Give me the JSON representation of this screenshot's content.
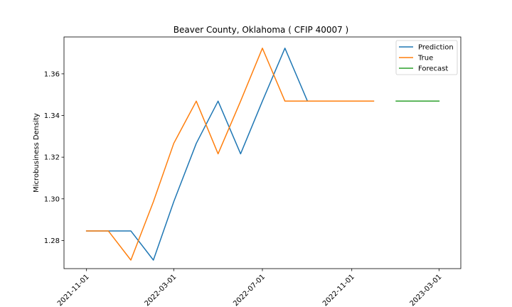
{
  "chart_data": {
    "type": "line",
    "title": "Beaver County, Oklahoma ( CFIP 40007 )",
    "xlabel": "",
    "ylabel": "Microbusiness Density",
    "x_axis_type": "date",
    "xlim": [
      "2021-10-01",
      "2023-03-31"
    ],
    "ylim": [
      1.2665,
      1.3777
    ],
    "x_ticks": [
      "2021-11-01",
      "2022-03-01",
      "2022-07-01",
      "2022-11-01",
      "2023-03-01"
    ],
    "y_ticks": [
      1.28,
      1.3,
      1.32,
      1.34,
      1.36
    ],
    "y_tick_labels": [
      "1.28",
      "1.30",
      "1.32",
      "1.34",
      "1.36"
    ],
    "grid": false,
    "legend_position": "top-right",
    "series": [
      {
        "name": "Prediction",
        "color": "#1f77b4",
        "x": [
          "2021-11-01",
          "2021-12-01",
          "2022-01-01",
          "2022-02-01",
          "2022-03-01",
          "2022-04-01",
          "2022-05-01",
          "2022-06-01",
          "2022-07-01",
          "2022-08-01",
          "2022-09-01",
          "2022-10-01",
          "2022-11-01",
          "2022-12-01"
        ],
        "y": [
          1.2846,
          1.2846,
          1.2846,
          1.2706,
          1.2986,
          1.3266,
          1.3469,
          1.3216,
          1.3469,
          1.3723,
          1.3469,
          1.3469,
          1.3469,
          1.3469
        ]
      },
      {
        "name": "True",
        "color": "#ff7f0e",
        "x": [
          "2021-11-01",
          "2021-12-01",
          "2022-01-01",
          "2022-02-01",
          "2022-03-01",
          "2022-04-01",
          "2022-05-01",
          "2022-06-01",
          "2022-07-01",
          "2022-08-01",
          "2022-09-01",
          "2022-10-01",
          "2022-11-01",
          "2022-12-01"
        ],
        "y": [
          1.2846,
          1.2846,
          1.2706,
          1.2986,
          1.3266,
          1.3469,
          1.3216,
          1.3469,
          1.3723,
          1.3469,
          1.3469,
          1.3469,
          1.3469,
          1.3469
        ]
      },
      {
        "name": "Forecast",
        "color": "#2ca02c",
        "x": [
          "2023-01-01",
          "2023-02-01",
          "2023-03-01"
        ],
        "y": [
          1.3469,
          1.3469,
          1.3469
        ]
      }
    ]
  }
}
